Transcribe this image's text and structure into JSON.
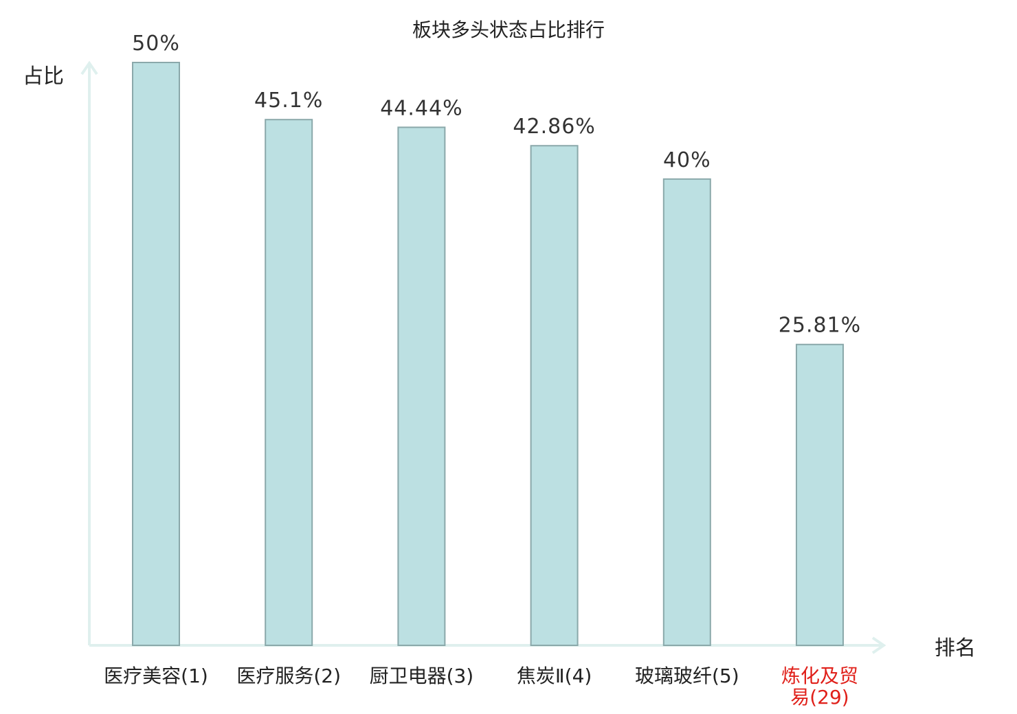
{
  "chart_data": {
    "type": "bar",
    "title": "板块多头状态占比排行",
    "ylabel": "占比",
    "xlabel": "排名",
    "ylim": [
      0,
      50
    ],
    "grid": false,
    "categories": [
      {
        "name": "医疗美容",
        "rank": "(1)",
        "highlight": false
      },
      {
        "name": "医疗服务",
        "rank": "(2)",
        "highlight": false
      },
      {
        "name": "厨卫电器",
        "rank": "(3)",
        "highlight": false
      },
      {
        "name": "焦炭Ⅱ",
        "rank": "(4)",
        "highlight": false
      },
      {
        "name": "玻璃玻纤",
        "rank": "(5)",
        "highlight": false
      },
      {
        "name": "炼化及贸易",
        "rank": "(29)",
        "highlight": true
      }
    ],
    "values": [
      50,
      45.1,
      44.44,
      42.86,
      40,
      25.81
    ],
    "value_labels": [
      "50%",
      "45.1%",
      "44.44%",
      "42.86%",
      "40%",
      "25.81%"
    ]
  },
  "colors": {
    "bar_fill": "#bce0e2",
    "bar_stroke": "#8aa8aa",
    "axis": "#dff0ee",
    "text": "#222222",
    "value_text": "#333333",
    "highlight": "#e0201a"
  }
}
